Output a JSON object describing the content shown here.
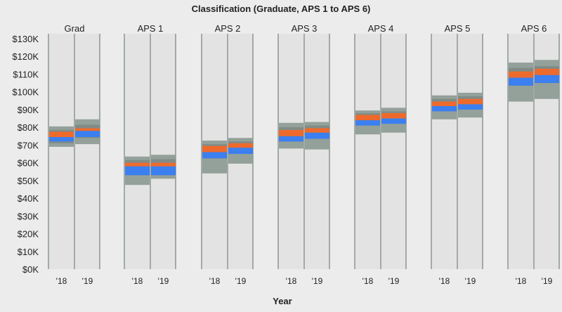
{
  "chart_data": {
    "type": "bar",
    "title": "Classification (Graduate, APS 1 to APS 6)",
    "xlabel": "Year",
    "ylabel": "",
    "ylim": [
      0,
      130000
    ],
    "yticks": [
      {
        "value": 0,
        "label": "$0K"
      },
      {
        "value": 10000,
        "label": "$10K"
      },
      {
        "value": 20000,
        "label": "$20K"
      },
      {
        "value": 30000,
        "label": "$30K"
      },
      {
        "value": 40000,
        "label": "$40K"
      },
      {
        "value": 50000,
        "label": "$50K"
      },
      {
        "value": 60000,
        "label": "$60K"
      },
      {
        "value": 70000,
        "label": "$70K"
      },
      {
        "value": 80000,
        "label": "$80K"
      },
      {
        "value": 90000,
        "label": "$90K"
      },
      {
        "value": 100000,
        "label": "$100K"
      },
      {
        "value": 110000,
        "label": "$110K"
      },
      {
        "value": 120000,
        "label": "$120K"
      },
      {
        "value": 130000,
        "label": "$130K"
      }
    ],
    "categories": [
      "Grad",
      "APS 1",
      "APS 2",
      "APS 3",
      "APS 4",
      "APS 5",
      "APS 6"
    ],
    "years": [
      "'18",
      "'19"
    ],
    "colors": {
      "panel": "#e3e3e3",
      "divider": "#8a9590",
      "outer_band": "#94a09a",
      "inner_band": "#808c87",
      "orange": "#ee6a2c",
      "blue": "#3b7ff0"
    },
    "groups": [
      {
        "name": "Grad",
        "bars": [
          {
            "min": 69000,
            "q1": 71000,
            "blue_low": 72000,
            "blue_high": 74500,
            "orange_low": 74500,
            "orange_high": 77500,
            "q3": 78500,
            "max": 80500
          },
          {
            "min": 70500,
            "q1": 74000,
            "blue_low": 74500,
            "blue_high": 78000,
            "orange_low": 78000,
            "orange_high": 79500,
            "q3": 81500,
            "max": 84500
          }
        ]
      },
      {
        "name": "APS 1",
        "bars": [
          {
            "min": 47500,
            "q1": 53000,
            "blue_low": 53000,
            "blue_high": 58000,
            "orange_low": 58000,
            "orange_high": 60000,
            "q3": 61500,
            "max": 63500
          },
          {
            "min": 51000,
            "q1": 53000,
            "blue_low": 53000,
            "blue_high": 58000,
            "orange_low": 58000,
            "orange_high": 60000,
            "q3": 62000,
            "max": 64500
          }
        ]
      },
      {
        "name": "APS 2",
        "bars": [
          {
            "min": 54000,
            "q1": 62500,
            "blue_low": 62500,
            "blue_high": 66000,
            "orange_low": 66000,
            "orange_high": 69500,
            "q3": 70500,
            "max": 72500
          },
          {
            "min": 59500,
            "q1": 65000,
            "blue_low": 65000,
            "blue_high": 68500,
            "orange_low": 68500,
            "orange_high": 71000,
            "q3": 72000,
            "max": 74000
          }
        ]
      },
      {
        "name": "APS 3",
        "bars": [
          {
            "min": 68000,
            "q1": 72000,
            "blue_low": 72000,
            "blue_high": 75000,
            "orange_low": 75000,
            "orange_high": 78500,
            "q3": 80000,
            "max": 82500
          },
          {
            "min": 67500,
            "q1": 73500,
            "blue_low": 73500,
            "blue_high": 77000,
            "orange_low": 77000,
            "orange_high": 79500,
            "q3": 81000,
            "max": 83000
          }
        ]
      },
      {
        "name": "APS 4",
        "bars": [
          {
            "min": 76000,
            "q1": 81000,
            "blue_low": 81000,
            "blue_high": 84000,
            "orange_low": 84000,
            "orange_high": 87000,
            "q3": 88000,
            "max": 89500
          },
          {
            "min": 77000,
            "q1": 82000,
            "blue_low": 82000,
            "blue_high": 85000,
            "orange_low": 85000,
            "orange_high": 88000,
            "q3": 89000,
            "max": 91000
          }
        ]
      },
      {
        "name": "APS 5",
        "bars": [
          {
            "min": 84500,
            "q1": 89000,
            "blue_low": 89000,
            "blue_high": 92000,
            "orange_low": 92000,
            "orange_high": 94500,
            "q3": 96000,
            "max": 98000
          },
          {
            "min": 85500,
            "q1": 90000,
            "blue_low": 90000,
            "blue_high": 93000,
            "orange_low": 93000,
            "orange_high": 96000,
            "q3": 97500,
            "max": 99500
          }
        ]
      },
      {
        "name": "APS 6",
        "bars": [
          {
            "min": 94500,
            "q1": 103500,
            "blue_low": 103500,
            "blue_high": 108000,
            "orange_low": 108000,
            "orange_high": 111500,
            "q3": 113500,
            "max": 116500
          },
          {
            "min": 96000,
            "q1": 105000,
            "blue_low": 105000,
            "blue_high": 109500,
            "orange_low": 109500,
            "orange_high": 113000,
            "q3": 114500,
            "max": 118000
          }
        ]
      }
    ]
  }
}
